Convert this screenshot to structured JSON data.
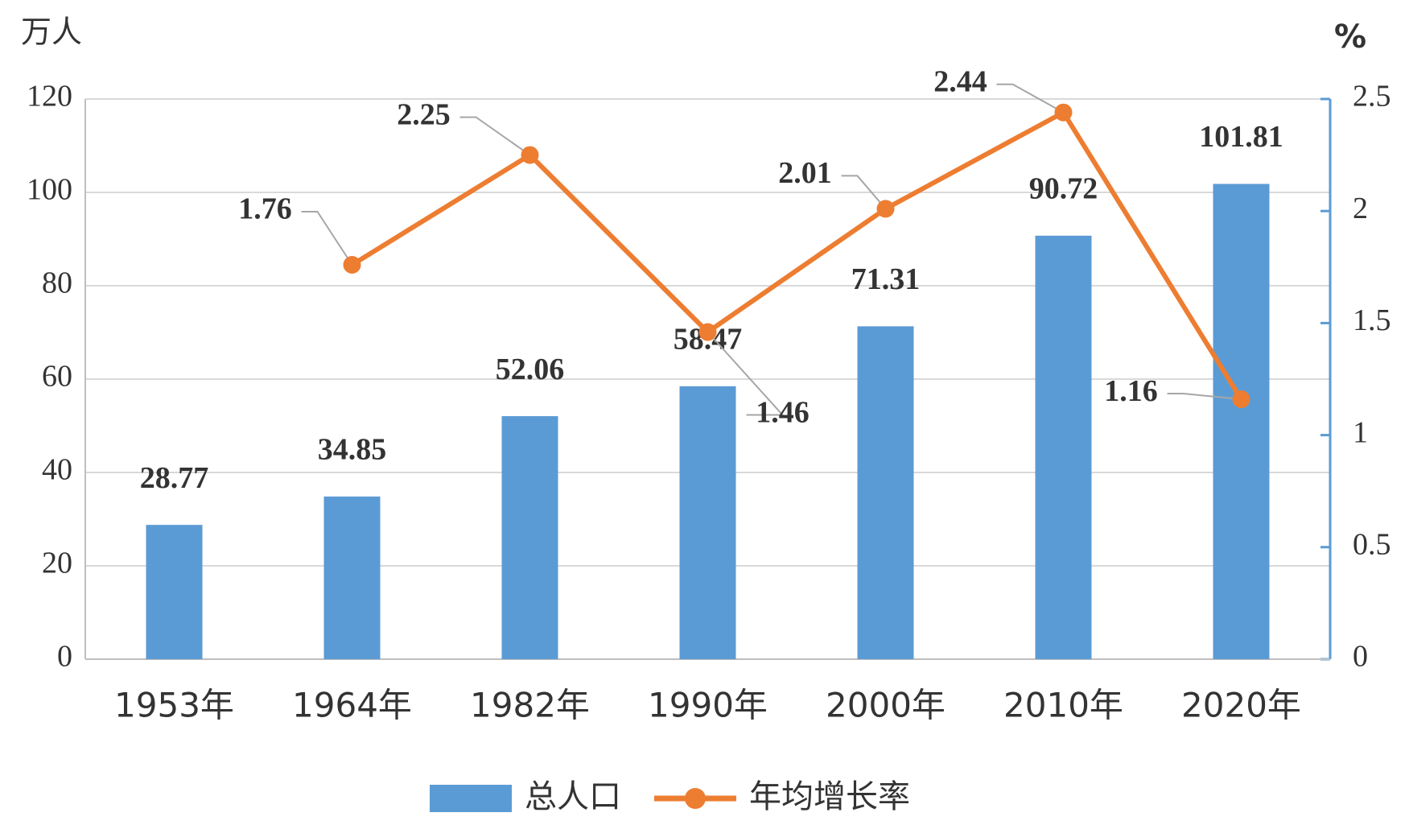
{
  "chart_data": {
    "type": "bar-line",
    "y_axis_label": "万人",
    "y2_axis_label": "%",
    "categories": [
      "1953年",
      "1964年",
      "1982年",
      "1990年",
      "2000年",
      "2010年",
      "2020年"
    ],
    "series": [
      {
        "name": "总人口",
        "type": "bar",
        "color": "#5b9bd5",
        "values": [
          28.77,
          34.85,
          52.06,
          58.47,
          71.31,
          90.72,
          101.81
        ]
      },
      {
        "name": "年均增长率",
        "type": "line",
        "axis": "y2",
        "color": "#ed7d31",
        "values": [
          null,
          1.76,
          2.25,
          1.46,
          2.01,
          2.44,
          1.16
        ]
      }
    ],
    "ylim": [
      0,
      120
    ],
    "yticks": [
      0,
      20,
      40,
      60,
      80,
      100,
      120
    ],
    "y2lim": [
      0,
      2.5
    ],
    "y2ticks": [
      0,
      0.5,
      1,
      1.5,
      2,
      2.5
    ],
    "grid": true,
    "legend": "bottom"
  }
}
